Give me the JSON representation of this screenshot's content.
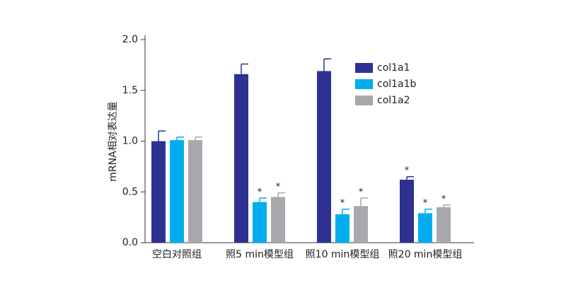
{
  "chart_data": {
    "type": "bar",
    "y_label": "mRNA相对表达量",
    "categories": [
      "空白对照组",
      "照5 min模型组",
      "照10 min模型组",
      "照20 min模型组"
    ],
    "series": [
      {
        "name": "col1a1",
        "color": "#2e3192",
        "values": [
          1.0,
          1.66,
          1.69,
          0.62
        ],
        "errors": [
          0.1,
          0.1,
          0.12,
          0.03
        ],
        "significance": [
          null,
          null,
          null,
          "*"
        ]
      },
      {
        "name": "col1a1b",
        "color": "#00aeef",
        "values": [
          1.01,
          0.4,
          0.28,
          0.29
        ],
        "errors": [
          0.03,
          0.04,
          0.05,
          0.04
        ],
        "significance": [
          null,
          "*",
          "*",
          "*"
        ]
      },
      {
        "name": "col1a2",
        "color": "#a7a9ac",
        "values": [
          1.01,
          0.45,
          0.36,
          0.35
        ],
        "errors": [
          0.03,
          0.04,
          0.08,
          0.02
        ],
        "significance": [
          null,
          "*",
          "*",
          "*"
        ]
      }
    ],
    "ylim": [
      0,
      2
    ],
    "yticks": [
      {
        "value": 0,
        "label": "0.0"
      },
      0.5,
      {
        "value": 1,
        "label": "1.0"
      },
      1.5,
      {
        "value": 2,
        "label": "2.0"
      }
    ],
    "legend": "upper right"
  }
}
